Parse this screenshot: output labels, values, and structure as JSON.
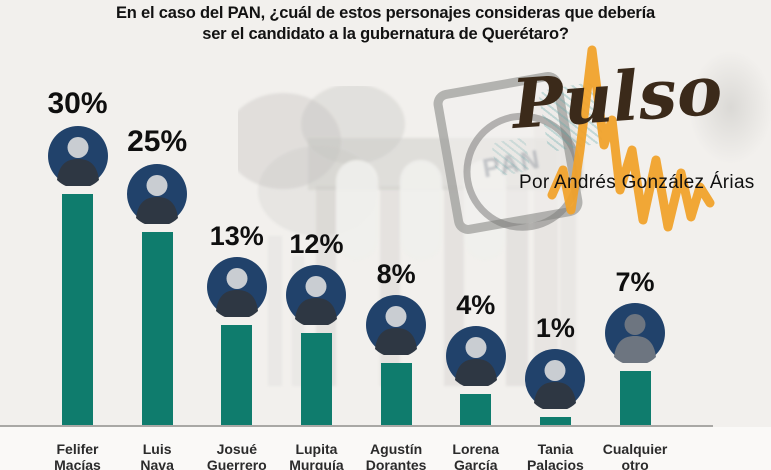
{
  "title": {
    "line1": "En el caso del PAN, ¿cuál de estos personajes consideras que debería",
    "line2": "ser el candidato a la gubernatura de Querétaro?"
  },
  "logo": {
    "brand": "Pulso",
    "byline": "Por Andrés González Árias",
    "pan_watermark": "PAN"
  },
  "chart_data": {
    "type": "bar",
    "title": "En el caso del PAN, ¿cuál de estos personajes consideras que debería ser el candidato a la gubernatura de Querétaro?",
    "categories": [
      "Felifer Macías",
      "Luis Nava",
      "Josué Guerrero",
      "Lupita Murguía",
      "Agustín Dorantes",
      "Lorena García",
      "Tania Palacios",
      "Cualquier otro"
    ],
    "values": [
      30,
      25,
      13,
      12,
      8,
      4,
      1,
      7
    ],
    "labels": [
      "30%",
      "25%",
      "13%",
      "12%",
      "8%",
      "4%",
      "1%",
      "7%"
    ],
    "unit": "%",
    "ylim": [
      0,
      33
    ],
    "grid": false,
    "legend": false,
    "xlabel": "",
    "ylabel": "",
    "avatar_types": [
      "photo",
      "photo",
      "photo",
      "photo",
      "photo",
      "photo",
      "photo",
      "silhouette"
    ]
  },
  "colors": {
    "bar": "#0f7c6d",
    "avatar_bg": "#21426b",
    "avatar_head_photo": "#c9cdd2",
    "avatar_body_photo": "#2e3743",
    "avatar_silhouette": "#6d7580",
    "pulse_orange": "#f0a22c",
    "script_brown": "#3b2a1a",
    "background": "#f2f0ed"
  }
}
